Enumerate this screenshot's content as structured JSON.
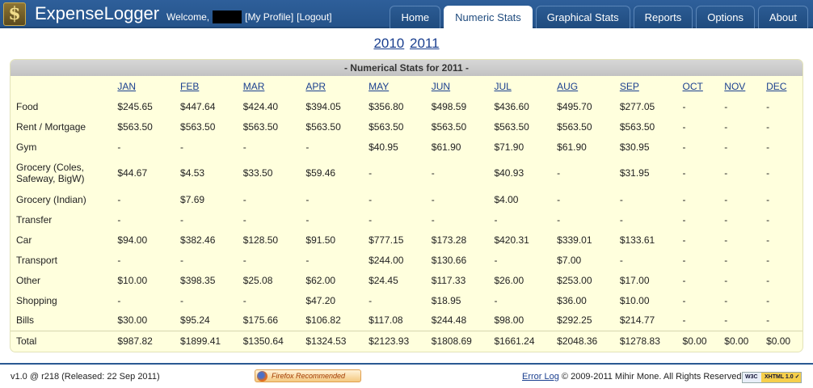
{
  "header": {
    "logo_glyph": "$",
    "title": "ExpenseLogger",
    "welcome": "Welcome,",
    "profile_link": "[My Profile]",
    "logout_link": "[Logout]",
    "tabs": [
      {
        "label": "Home"
      },
      {
        "label": "Numeric Stats",
        "active": true
      },
      {
        "label": "Graphical Stats"
      },
      {
        "label": "Reports"
      },
      {
        "label": "Options"
      },
      {
        "label": "About"
      }
    ]
  },
  "years": [
    "2010",
    "2011"
  ],
  "stats": {
    "title": "- Numerical Stats for 2011 -",
    "months": [
      "JAN",
      "FEB",
      "MAR",
      "APR",
      "MAY",
      "JUN",
      "JUL",
      "AUG",
      "SEP",
      "OCT",
      "NOV",
      "DEC"
    ],
    "rows": [
      {
        "category": "Food",
        "values": [
          "$245.65",
          "$447.64",
          "$424.40",
          "$394.05",
          "$356.80",
          "$498.59",
          "$436.60",
          "$495.70",
          "$277.05",
          "-",
          "-",
          "-"
        ]
      },
      {
        "category": "Rent / Mortgage",
        "values": [
          "$563.50",
          "$563.50",
          "$563.50",
          "$563.50",
          "$563.50",
          "$563.50",
          "$563.50",
          "$563.50",
          "$563.50",
          "-",
          "-",
          "-"
        ]
      },
      {
        "category": "Gym",
        "values": [
          "-",
          "-",
          "-",
          "-",
          "$40.95",
          "$61.90",
          "$71.90",
          "$61.90",
          "$30.95",
          "-",
          "-",
          "-"
        ]
      },
      {
        "category": "Grocery (Coles, Safeway, BigW)",
        "tall": true,
        "values": [
          "$44.67",
          "$4.53",
          "$33.50",
          "$59.46",
          "-",
          "-",
          "$40.93",
          "-",
          "$31.95",
          "-",
          "-",
          "-"
        ]
      },
      {
        "category": "Grocery (Indian)",
        "values": [
          "-",
          "$7.69",
          "-",
          "-",
          "-",
          "-",
          "$4.00",
          "-",
          "-",
          "-",
          "-",
          "-"
        ]
      },
      {
        "category": "Transfer",
        "values": [
          "-",
          "-",
          "-",
          "-",
          "-",
          "-",
          "-",
          "-",
          "-",
          "-",
          "-",
          "-"
        ]
      },
      {
        "category": "Car",
        "values": [
          "$94.00",
          "$382.46",
          "$128.50",
          "$91.50",
          "$777.15",
          "$173.28",
          "$420.31",
          "$339.01",
          "$133.61",
          "-",
          "-",
          "-"
        ]
      },
      {
        "category": "Transport",
        "values": [
          "-",
          "-",
          "-",
          "-",
          "$244.00",
          "$130.66",
          "-",
          "$7.00",
          "-",
          "-",
          "-",
          "-"
        ]
      },
      {
        "category": "Other",
        "values": [
          "$10.00",
          "$398.35",
          "$25.08",
          "$62.00",
          "$24.45",
          "$117.33",
          "$26.00",
          "$253.00",
          "$17.00",
          "-",
          "-",
          "-"
        ]
      },
      {
        "category": "Shopping",
        "values": [
          "-",
          "-",
          "-",
          "$47.20",
          "-",
          "$18.95",
          "-",
          "$36.00",
          "$10.00",
          "-",
          "-",
          "-"
        ]
      },
      {
        "category": "Bills",
        "values": [
          "$30.00",
          "$95.24",
          "$175.66",
          "$106.82",
          "$117.08",
          "$244.48",
          "$98.00",
          "$292.25",
          "$214.77",
          "-",
          "-",
          "-"
        ]
      }
    ],
    "total": {
      "label": "Total",
      "values": [
        "$987.82",
        "$1899.41",
        "$1350.64",
        "$1324.53",
        "$2123.93",
        "$1808.69",
        "$1661.24",
        "$2048.36",
        "$1278.83",
        "$0.00",
        "$0.00",
        "$0.00"
      ]
    }
  },
  "footer": {
    "version": "v1.0 @ r218 (Released: 22 Sep 2011)",
    "firefox_badge": "Firefox Recommended",
    "error_log": "Error Log",
    "copyright": "© 2009-2011 Mihir Mone. All Rights Reserved.",
    "w3c_left": "W3C",
    "w3c_right": "XHTML 1.0 ✓"
  }
}
